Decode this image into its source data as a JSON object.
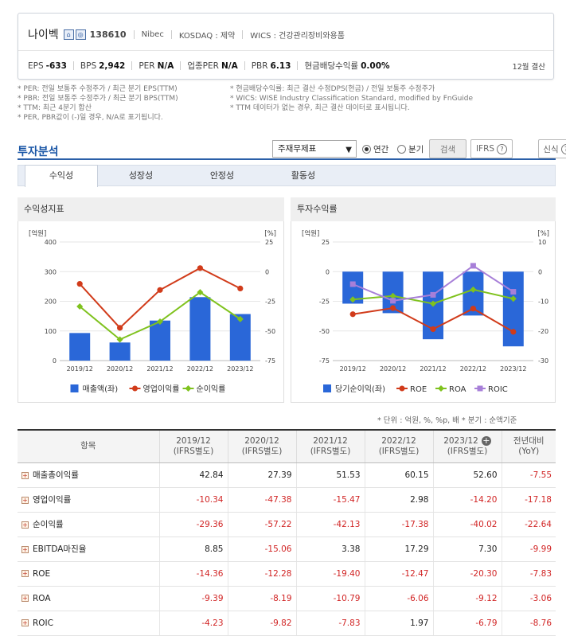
{
  "company": {
    "name": "나이벡",
    "code": "138610",
    "eng_name": "Nibec",
    "market": "KOSDAQ : 제약",
    "wics": "WICS : 건강관리장비와용품",
    "icons": [
      "home-icon",
      "company-icon"
    ]
  },
  "metrics": [
    {
      "k": "EPS",
      "v": "-633"
    },
    {
      "k": "BPS",
      "v": "2,942"
    },
    {
      "k": "PER",
      "v": "N/A"
    },
    {
      "k": "업종PER",
      "v": "N/A"
    },
    {
      "k": "PBR",
      "v": "6.13"
    },
    {
      "k": "현금배당수익률",
      "v": "0.00%"
    }
  ],
  "settlement": "12월 결산",
  "notes_left": [
    "* PER: 전일 보통주 수정주가 / 최근 분기 EPS(TTM)",
    "* PBR: 전일 보통주 수정주가 / 최근 분기 BPS(TTM)",
    "* TTM: 최근 4분기 합산",
    "* PER, PBR값이 (-)일 경우, N/A로 표기됩니다."
  ],
  "notes_right": [
    "* 현금배당수익률: 최근 결산 수정DPS(현금) / 전일 보통주 수정주가",
    "* WICS: WISE Industry Classification Standard, modified by FnGuide",
    "* TTM 데이터가 없는 경우, 최근 결산 데이터로 표시됩니다."
  ],
  "section": {
    "title": "투자분석",
    "select_value": "주재무제표",
    "radio_annual": "연간",
    "radio_quarter": "분기",
    "search_btn": "검색",
    "ifrs_btn": "IFRS",
    "new_btn": "신식"
  },
  "tabs": [
    "수익성",
    "성장성",
    "안정성",
    "활동성"
  ],
  "panels": {
    "left_title": "수익성지표",
    "right_title": "투자수익률"
  },
  "unit_note": "* 단위 : 억원, %, %p, 배     * 분기 : 순액기준",
  "colors": {
    "bar": "#2a67d8",
    "red": "#d13b1a",
    "green": "#7fc21e",
    "purple": "#a77fd8",
    "accent": "#1a56a6"
  },
  "chart_data": [
    {
      "type": "bar",
      "left_unit": "[억원]",
      "right_unit": "[%]",
      "categories": [
        "2019/12",
        "2020/12",
        "2021/12",
        "2022/12",
        "2023/12"
      ],
      "left_ticks": [
        "400",
        "300",
        "200",
        "100",
        "0"
      ],
      "right_ticks": [
        "25",
        "0",
        "-25",
        "-50",
        "-75"
      ],
      "ylim_left": [
        0,
        400
      ],
      "ylim_right": [
        -75,
        25
      ],
      "bar_series": {
        "name": "매출액(좌)",
        "values": [
          93,
          61,
          135,
          214,
          157
        ]
      },
      "line_series": [
        {
          "name": "영업이익률",
          "values": [
            -10.34,
            -47.38,
            -15.47,
            2.98,
            -14.2
          ]
        },
        {
          "name": "순이익률",
          "values": [
            -29.36,
            -57.22,
            -42.13,
            -17.38,
            -40.02
          ]
        }
      ]
    },
    {
      "type": "bar",
      "left_unit": "[억원]",
      "right_unit": "[%]",
      "categories": [
        "2019/12",
        "2020/12",
        "2021/12",
        "2022/12",
        "2023/12"
      ],
      "left_ticks": [
        "25",
        "0",
        "-25",
        "-50",
        "-75"
      ],
      "right_ticks": [
        "10",
        "0",
        "-10",
        "-20",
        "-30"
      ],
      "ylim_left": [
        -75,
        25
      ],
      "ylim_right": [
        -30,
        10
      ],
      "bar_series": {
        "name": "당기순이익(좌)",
        "values": [
          -27,
          -35,
          -57,
          -37,
          -63
        ]
      },
      "line_series": [
        {
          "name": "ROE",
          "values": [
            -14.36,
            -12.28,
            -19.4,
            -12.47,
            -20.3
          ]
        },
        {
          "name": "ROA",
          "values": [
            -9.39,
            -8.19,
            -10.79,
            -6.06,
            -9.12
          ]
        },
        {
          "name": "ROIC",
          "values": [
            -4.23,
            -9.82,
            -7.83,
            1.97,
            -6.79
          ]
        }
      ]
    }
  ],
  "table": {
    "header_item": "항목",
    "columns": [
      {
        "top": "2019/12",
        "bottom": "(IFRS별도)"
      },
      {
        "top": "2020/12",
        "bottom": "(IFRS별도)"
      },
      {
        "top": "2021/12",
        "bottom": "(IFRS별도)"
      },
      {
        "top": "2022/12",
        "bottom": "(IFRS별도)"
      },
      {
        "top": "2023/12",
        "bottom": "(IFRS별도)"
      },
      {
        "top": "전년대비",
        "bottom": "(YoY)"
      }
    ],
    "rows": [
      {
        "label": "매출총이익률",
        "values": [
          "42.84",
          "27.39",
          "51.53",
          "60.15",
          "52.60",
          "-7.55"
        ]
      },
      {
        "label": "영업이익률",
        "values": [
          "-10.34",
          "-47.38",
          "-15.47",
          "2.98",
          "-14.20",
          "-17.18"
        ]
      },
      {
        "label": "순이익률",
        "values": [
          "-29.36",
          "-57.22",
          "-42.13",
          "-17.38",
          "-40.02",
          "-22.64"
        ]
      },
      {
        "label": "EBITDA마진율",
        "values": [
          "8.85",
          "-15.06",
          "3.38",
          "17.29",
          "7.30",
          "-9.99"
        ]
      },
      {
        "label": "ROE",
        "values": [
          "-14.36",
          "-12.28",
          "-19.40",
          "-12.47",
          "-20.30",
          "-7.83"
        ]
      },
      {
        "label": "ROA",
        "values": [
          "-9.39",
          "-8.19",
          "-10.79",
          "-6.06",
          "-9.12",
          "-3.06"
        ]
      },
      {
        "label": "ROIC",
        "values": [
          "-4.23",
          "-9.82",
          "-7.83",
          "1.97",
          "-6.79",
          "-8.76"
        ]
      }
    ]
  }
}
